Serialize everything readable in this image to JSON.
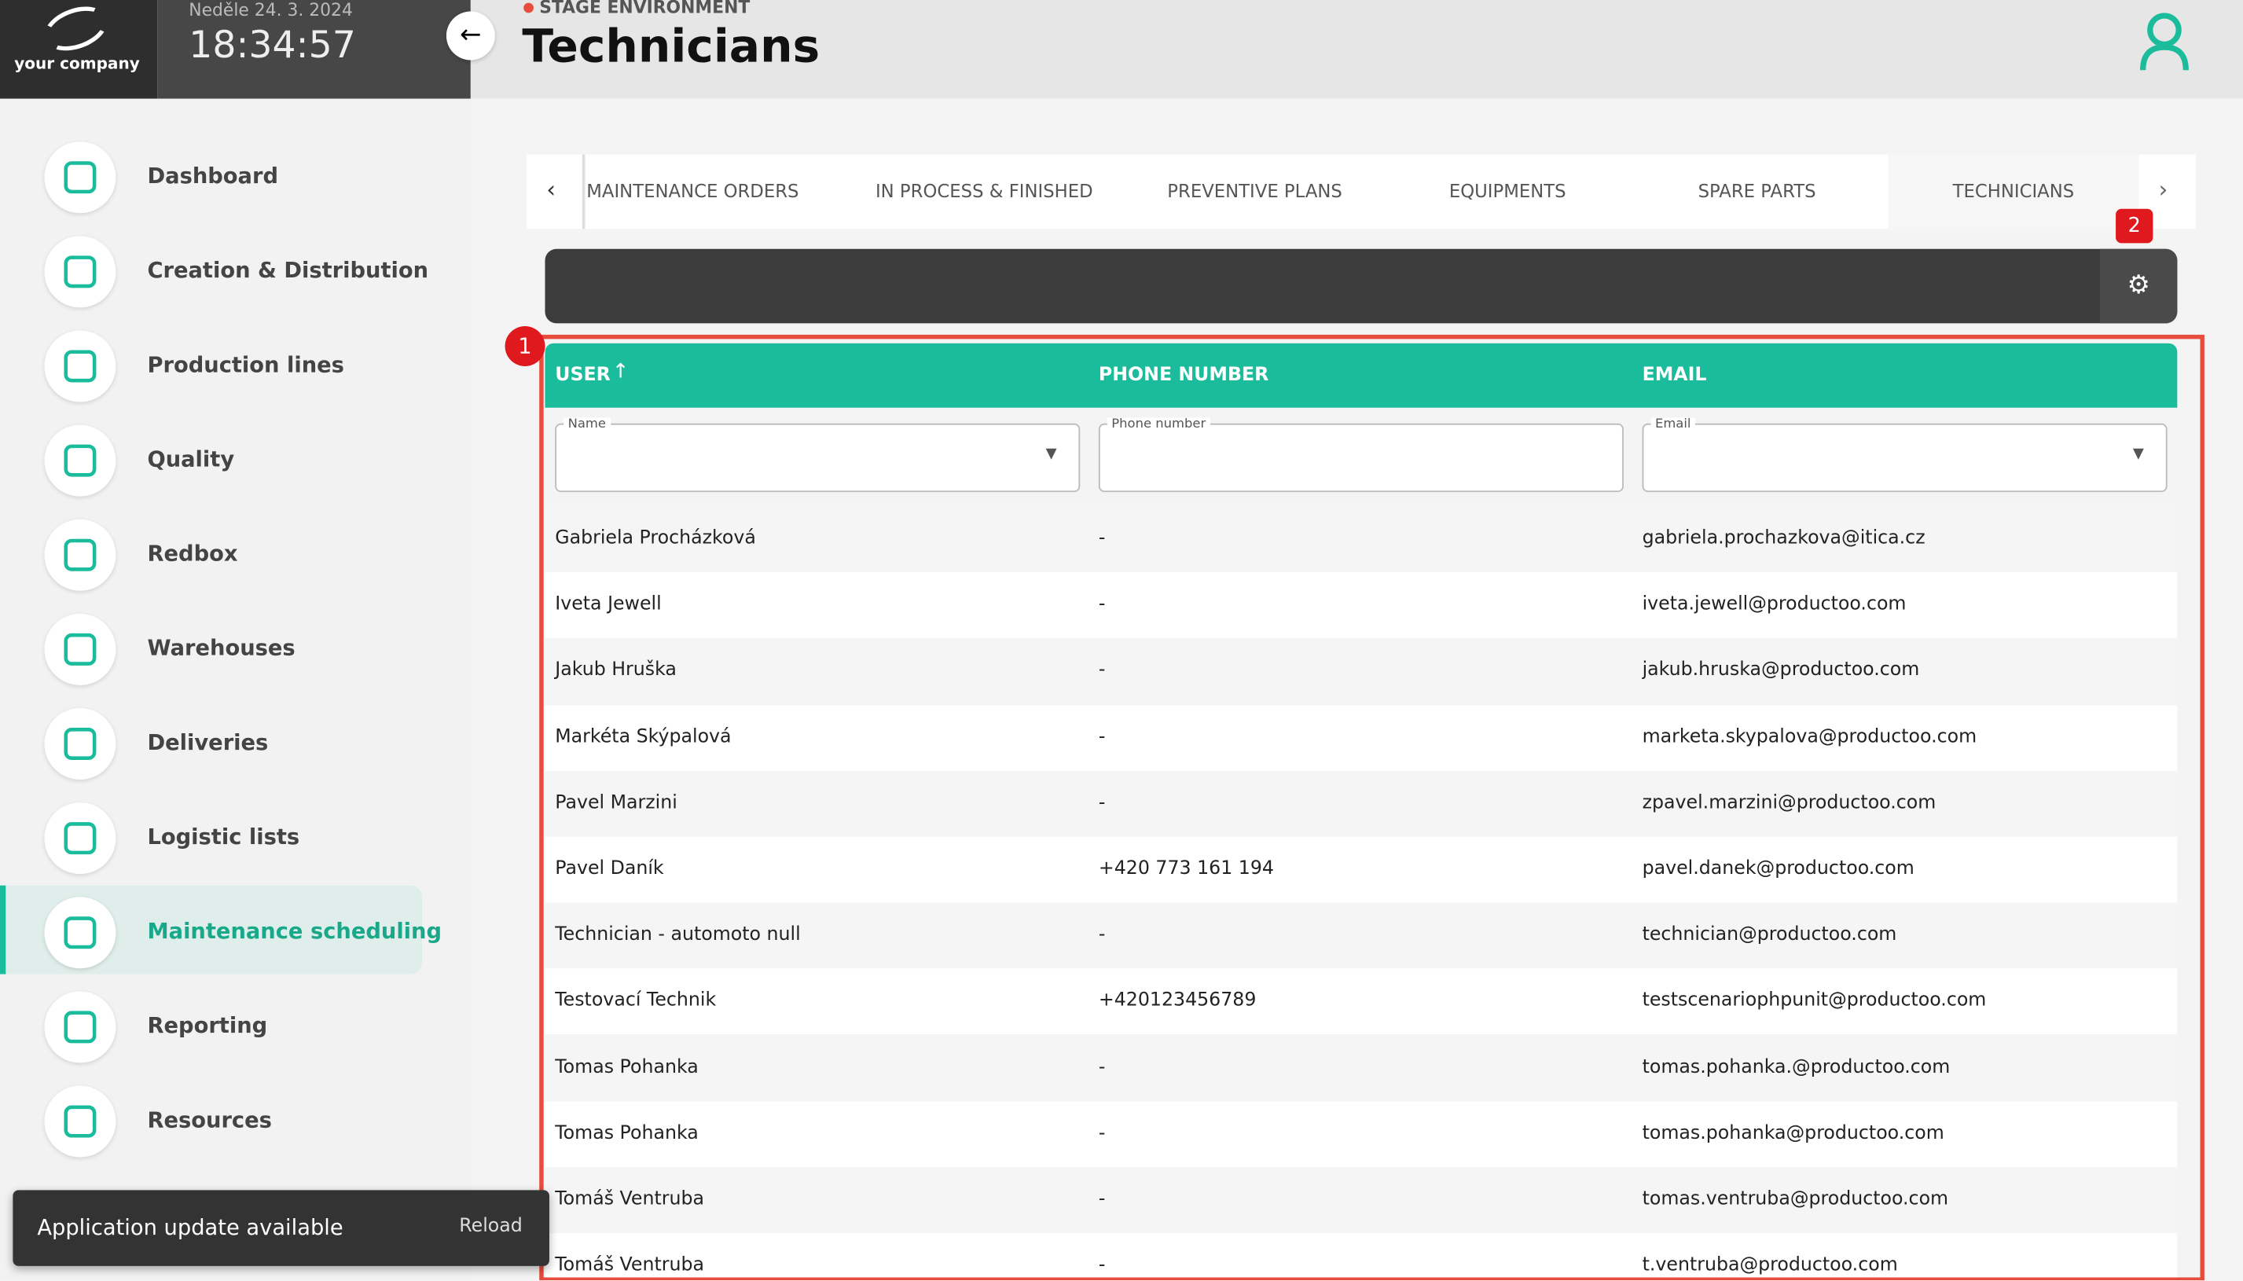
{
  "header": {
    "company": "your company",
    "date": "Neděle 24. 3. 2024",
    "time": "18:34:57",
    "environment": "STAGE ENVIRONMENT",
    "title": "Technicians"
  },
  "nav": {
    "items": [
      "Dashboard",
      "Creation & Distribution",
      "Production lines",
      "Quality",
      "Redbox",
      "Warehouses",
      "Deliveries",
      "Logistic lists",
      "Maintenance scheduling",
      "Reporting",
      "Resources"
    ],
    "active": 8
  },
  "tabs": {
    "items": [
      "MAINTENANCE ORDERS",
      "IN PROCESS & FINISHED",
      "PREVENTIVE PLANS",
      "EQUIPMENTS",
      "SPARE PARTS",
      "TECHNICIANS"
    ],
    "active": 5
  },
  "table": {
    "columns": [
      "USER",
      "PHONE NUMBER",
      "EMAIL"
    ],
    "filters": [
      "Name",
      "Phone number",
      "Email"
    ],
    "rows": [
      [
        "Gabriela Procházková",
        "-",
        "gabriela.prochazkova@itica.cz"
      ],
      [
        "Iveta Jewell",
        "-",
        "iveta.jewell@productoo.com"
      ],
      [
        "Jakub Hruška",
        "-",
        "jakub.hruska@productoo.com"
      ],
      [
        "Markéta Skýpalová",
        "-",
        "marketa.skypalova@productoo.com"
      ],
      [
        "Pavel Marzini",
        "-",
        "zpavel.marzini@productoo.com"
      ],
      [
        "Pavel Daník",
        "+420 773 161 194",
        "pavel.danek@productoo.com"
      ],
      [
        "Technician - automoto null",
        "-",
        "technician@productoo.com"
      ],
      [
        "Testovací Technik",
        "+420123456789",
        "testscenariophpunit@productoo.com"
      ],
      [
        "Tomas Pohanka",
        "-",
        "tomas.pohanka.@productoo.com"
      ],
      [
        "Tomas Pohanka",
        "-",
        "tomas.pohanka@productoo.com"
      ],
      [
        "Tomáš Ventruba",
        "-",
        "tomas.ventruba@productoo.com"
      ],
      [
        "Tomáš Ventruba",
        "-",
        "t.ventruba@productoo.com"
      ]
    ]
  },
  "badges": [
    "1",
    "2"
  ],
  "toast": {
    "message": "Application update available",
    "action": "Reload"
  }
}
